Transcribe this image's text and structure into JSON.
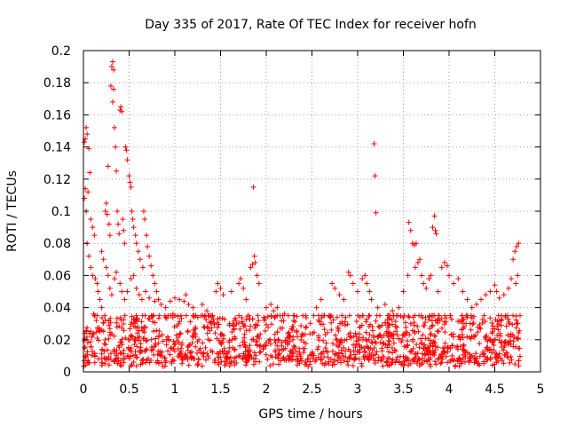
{
  "chart_data": {
    "type": "scatter",
    "title": "Day 335 of 2017, Rate Of TEC Index for receiver hofn",
    "xlabel": "GPS time / hours",
    "ylabel": "ROTI / TECUs",
    "xlim": [
      0,
      5
    ],
    "ylim": [
      0,
      0.2
    ],
    "x_ticks": [
      0,
      0.5,
      1,
      1.5,
      2,
      2.5,
      3,
      3.5,
      4,
      4.5,
      5
    ],
    "x_tick_labels": [
      "0",
      "0.5",
      "1",
      "1.5",
      "2",
      "2.5",
      "3",
      "3.5",
      "4",
      "4.5",
      "5"
    ],
    "y_ticks": [
      0,
      0.02,
      0.04,
      0.06,
      0.08,
      0.1,
      0.12,
      0.14,
      0.16,
      0.18,
      0.2
    ],
    "y_tick_labels": [
      "0",
      "0.02",
      "0.04",
      "0.06",
      "0.08",
      "0.1",
      "0.12",
      "0.14",
      "0.16",
      "0.18",
      "0.2"
    ],
    "grid": true,
    "marker": "plus",
    "color": "#ff0000",
    "series": [
      {
        "points": [
          [
            0.01,
            0.143
          ],
          [
            0.02,
            0.145
          ],
          [
            0.03,
            0.152
          ],
          [
            0.04,
            0.148
          ],
          [
            0.06,
            0.139
          ],
          [
            0.05,
            0.112
          ],
          [
            0.02,
            0.114
          ],
          [
            0.01,
            0.108
          ],
          [
            0.03,
            0.1
          ],
          [
            0.07,
            0.124
          ],
          [
            0.08,
            0.095
          ],
          [
            0.1,
            0.09
          ],
          [
            0.12,
            0.085
          ],
          [
            0.04,
            0.08
          ],
          [
            0.06,
            0.072
          ],
          [
            0.08,
            0.065
          ],
          [
            0.1,
            0.06
          ],
          [
            0.13,
            0.058
          ],
          [
            0.15,
            0.055
          ],
          [
            0.16,
            0.05
          ],
          [
            0.18,
            0.045
          ],
          [
            0.2,
            0.04
          ],
          [
            0.11,
            0.036
          ],
          [
            0.14,
            0.032
          ],
          [
            0.2,
            0.075
          ],
          [
            0.22,
            0.07
          ],
          [
            0.24,
            0.1
          ],
          [
            0.25,
            0.105
          ],
          [
            0.26,
            0.098
          ],
          [
            0.27,
            0.128
          ],
          [
            0.28,
            0.092
          ],
          [
            0.29,
            0.085
          ],
          [
            0.3,
            0.178
          ],
          [
            0.31,
            0.19
          ],
          [
            0.32,
            0.193
          ],
          [
            0.33,
            0.188
          ],
          [
            0.33,
            0.176
          ],
          [
            0.32,
            0.168
          ],
          [
            0.34,
            0.152
          ],
          [
            0.35,
            0.14
          ],
          [
            0.36,
            0.125
          ],
          [
            0.37,
            0.1
          ],
          [
            0.38,
            0.092
          ],
          [
            0.39,
            0.086
          ],
          [
            0.4,
            0.163
          ],
          [
            0.41,
            0.165
          ],
          [
            0.42,
            0.162
          ],
          [
            0.43,
            0.095
          ],
          [
            0.44,
            0.088
          ],
          [
            0.45,
            0.08
          ],
          [
            0.46,
            0.14
          ],
          [
            0.47,
            0.138
          ],
          [
            0.48,
            0.132
          ],
          [
            0.5,
            0.122
          ],
          [
            0.51,
            0.118
          ],
          [
            0.52,
            0.115
          ],
          [
            0.53,
            0.1
          ],
          [
            0.54,
            0.095
          ],
          [
            0.55,
            0.09
          ],
          [
            0.57,
            0.085
          ],
          [
            0.58,
            0.08
          ],
          [
            0.6,
            0.075
          ],
          [
            0.62,
            0.07
          ],
          [
            0.65,
            0.065
          ],
          [
            0.66,
            0.1
          ],
          [
            0.67,
            0.095
          ],
          [
            0.69,
            0.085
          ],
          [
            0.7,
            0.078
          ],
          [
            0.72,
            0.072
          ],
          [
            0.74,
            0.066
          ],
          [
            0.76,
            0.06
          ],
          [
            0.78,
            0.055
          ],
          [
            0.8,
            0.05
          ],
          [
            0.82,
            0.045
          ],
          [
            0.25,
            0.065
          ],
          [
            0.27,
            0.06
          ],
          [
            0.29,
            0.052
          ],
          [
            0.31,
            0.048
          ],
          [
            0.34,
            0.058
          ],
          [
            0.36,
            0.062
          ],
          [
            0.4,
            0.055
          ],
          [
            0.42,
            0.05
          ],
          [
            0.45,
            0.045
          ],
          [
            0.48,
            0.05
          ],
          [
            0.52,
            0.058
          ],
          [
            0.55,
            0.06
          ],
          [
            0.58,
            0.052
          ],
          [
            0.61,
            0.048
          ],
          [
            0.64,
            0.045
          ],
          [
            0.68,
            0.05
          ],
          [
            0.72,
            0.046
          ],
          [
            0.78,
            0.044
          ],
          [
            0.85,
            0.042
          ],
          [
            0.9,
            0.04
          ],
          [
            0.95,
            0.044
          ],
          [
            1.0,
            0.046
          ],
          [
            1.05,
            0.045
          ],
          [
            1.1,
            0.044
          ],
          [
            1.12,
            0.048
          ],
          [
            1.15,
            0.042
          ],
          [
            1.2,
            0.04
          ],
          [
            1.3,
            0.042
          ],
          [
            1.35,
            0.038
          ],
          [
            1.45,
            0.05
          ],
          [
            1.47,
            0.055
          ],
          [
            1.5,
            0.052
          ],
          [
            1.53,
            0.048
          ],
          [
            1.62,
            0.05
          ],
          [
            1.7,
            0.055
          ],
          [
            1.72,
            0.058
          ],
          [
            1.75,
            0.052
          ],
          [
            1.78,
            0.045
          ],
          [
            1.83,
            0.065
          ],
          [
            1.85,
            0.067
          ],
          [
            1.87,
            0.072
          ],
          [
            1.86,
            0.115
          ],
          [
            1.88,
            0.068
          ],
          [
            1.9,
            0.06
          ],
          [
            1.92,
            0.055
          ],
          [
            1.85,
            0.033
          ],
          [
            2.0,
            0.04
          ],
          [
            2.05,
            0.042
          ],
          [
            2.08,
            0.038
          ],
          [
            2.12,
            0.04
          ],
          [
            2.2,
            0.036
          ],
          [
            2.4,
            0.035
          ],
          [
            2.55,
            0.04
          ],
          [
            2.6,
            0.045
          ],
          [
            2.72,
            0.055
          ],
          [
            2.75,
            0.052
          ],
          [
            2.8,
            0.048
          ],
          [
            2.85,
            0.045
          ],
          [
            2.9,
            0.062
          ],
          [
            2.92,
            0.06
          ],
          [
            2.95,
            0.055
          ],
          [
            3.0,
            0.05
          ],
          [
            3.05,
            0.058
          ],
          [
            3.08,
            0.06
          ],
          [
            3.1,
            0.055
          ],
          [
            3.13,
            0.05
          ],
          [
            3.18,
            0.142
          ],
          [
            3.19,
            0.122
          ],
          [
            3.2,
            0.099
          ],
          [
            3.15,
            0.045
          ],
          [
            3.22,
            0.04
          ],
          [
            3.3,
            0.042
          ],
          [
            3.38,
            0.038
          ],
          [
            3.45,
            0.04
          ],
          [
            3.5,
            0.05
          ],
          [
            3.55,
            0.06
          ],
          [
            3.56,
            0.093
          ],
          [
            3.58,
            0.088
          ],
          [
            3.6,
            0.08
          ],
          [
            3.62,
            0.079
          ],
          [
            3.64,
            0.08
          ],
          [
            3.63,
            0.065
          ],
          [
            3.66,
            0.068
          ],
          [
            3.68,
            0.07
          ],
          [
            3.7,
            0.06
          ],
          [
            3.72,
            0.055
          ],
          [
            3.75,
            0.052
          ],
          [
            3.78,
            0.058
          ],
          [
            3.8,
            0.06
          ],
          [
            3.82,
            0.09
          ],
          [
            3.84,
            0.097
          ],
          [
            3.85,
            0.088
          ],
          [
            3.86,
            0.086
          ],
          [
            3.88,
            0.05
          ],
          [
            3.92,
            0.065
          ],
          [
            3.95,
            0.068
          ],
          [
            3.98,
            0.066
          ],
          [
            4.0,
            0.06
          ],
          [
            4.05,
            0.055
          ],
          [
            4.1,
            0.058
          ],
          [
            4.15,
            0.05
          ],
          [
            4.2,
            0.045
          ],
          [
            4.25,
            0.04
          ],
          [
            4.3,
            0.042
          ],
          [
            4.35,
            0.045
          ],
          [
            4.4,
            0.048
          ],
          [
            4.45,
            0.05
          ],
          [
            4.5,
            0.054
          ],
          [
            4.52,
            0.05
          ],
          [
            4.55,
            0.046
          ],
          [
            4.6,
            0.048
          ],
          [
            4.65,
            0.052
          ],
          [
            4.68,
            0.058
          ],
          [
            4.7,
            0.07
          ],
          [
            4.72,
            0.075
          ],
          [
            4.74,
            0.078
          ],
          [
            4.76,
            0.08
          ],
          [
            4.75,
            0.06
          ],
          [
            4.73,
            0.055
          ],
          [
            4.62,
            0.035
          ],
          [
            4.66,
            0.03
          ],
          [
            4.7,
            0.035
          ],
          [
            4.74,
            0.03
          ],
          [
            0.98,
            0.036
          ],
          [
            1.25,
            0.034
          ],
          [
            1.6,
            0.03
          ],
          [
            2.3,
            0.032
          ],
          [
            2.7,
            0.034
          ],
          [
            3.35,
            0.033
          ],
          [
            3.9,
            0.032
          ],
          [
            4.2,
            0.034
          ]
        ],
        "dense_band": {
          "description": "",
          "x_range": [
            0,
            4.78
          ],
          "y_range": [
            0.003,
            0.035
          ]
        }
      }
    ]
  }
}
